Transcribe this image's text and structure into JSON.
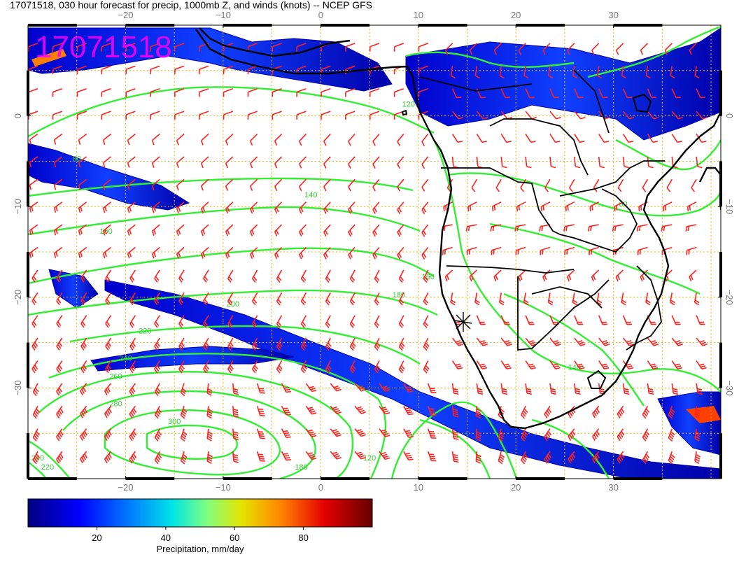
{
  "title": "17071518, 030 hour forecast for precip, 1000mb Z, and winds (knots) -- NCEP GFS",
  "stamp": "17071518",
  "map": {
    "lon_range": [
      -30,
      41
    ],
    "lat_range": [
      -40,
      10
    ],
    "x_ticks": [
      {
        "value": -20,
        "label": "−20"
      },
      {
        "value": -10,
        "label": "−10"
      },
      {
        "value": 0,
        "label": "0"
      },
      {
        "value": 10,
        "label": "10"
      },
      {
        "value": 20,
        "label": "20"
      },
      {
        "value": 30,
        "label": "30"
      }
    ],
    "y_ticks": [
      {
        "value": 0,
        "label": "0"
      },
      {
        "value": -10,
        "label": "−10"
      },
      {
        "value": -20,
        "label": "−20"
      },
      {
        "value": -30,
        "label": "−30"
      }
    ],
    "gridline_color": "#e6b800",
    "contour_color": "#33ee33",
    "wind_color": "#ff2020",
    "coast_color": "#000000",
    "contour_labels": [
      {
        "text": "80",
        "lon": -25,
        "lat": -5
      },
      {
        "text": "140",
        "lon": -1,
        "lat": -9
      },
      {
        "text": "160",
        "lon": -22,
        "lat": -13
      },
      {
        "text": "160",
        "lon": 11,
        "lat": -18
      },
      {
        "text": "180",
        "lon": 8,
        "lat": -20
      },
      {
        "text": "200",
        "lon": -9,
        "lat": -21
      },
      {
        "text": "220",
        "lon": -18,
        "lat": -24
      },
      {
        "text": "240",
        "lon": -20,
        "lat": -27
      },
      {
        "text": "260",
        "lon": -21,
        "lat": -29
      },
      {
        "text": "280",
        "lon": -21,
        "lat": -32
      },
      {
        "text": "300",
        "lon": -15,
        "lat": -34
      },
      {
        "text": "240",
        "lon": -29,
        "lat": -38
      },
      {
        "text": "220",
        "lon": -28,
        "lat": -39
      },
      {
        "text": "180",
        "lon": -2,
        "lat": -39
      },
      {
        "text": "120",
        "lon": 5,
        "lat": -38
      },
      {
        "text": "140",
        "lon": 26,
        "lat": -28
      },
      {
        "text": "60",
        "lon": 31,
        "lat": -10
      },
      {
        "text": "120",
        "lon": 9,
        "lat": 1
      }
    ]
  },
  "colorbar": {
    "min": 0,
    "max": 100,
    "ticks": [
      {
        "value": 20,
        "label": "20"
      },
      {
        "value": 40,
        "label": "40"
      },
      {
        "value": 60,
        "label": "60"
      },
      {
        "value": 80,
        "label": "80"
      }
    ],
    "label": "Precipitation, mm/day",
    "colors": [
      "#000080",
      "#0000ff",
      "#0080ff",
      "#00e5e5",
      "#80ff80",
      "#e5e500",
      "#ff8000",
      "#e50000",
      "#660000"
    ]
  }
}
